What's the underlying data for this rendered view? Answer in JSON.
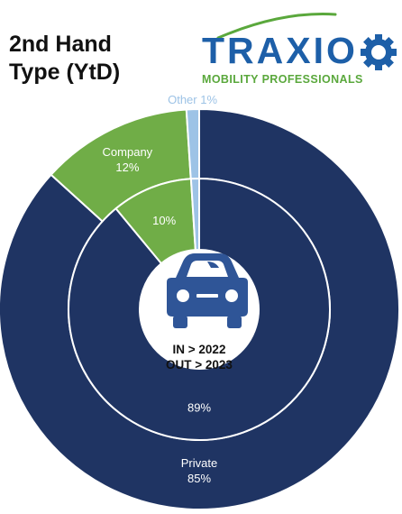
{
  "title_lines": [
    "2nd Hand",
    "Type (YtD)"
  ],
  "logo": {
    "wordmark": "TRAXIO",
    "tagline": "MOBILITY PROFESSIONALS"
  },
  "center_label": {
    "line1": "IN > 2022",
    "line2": "OUT > 2023"
  },
  "colors": {
    "private": "#1f3463",
    "company": "#70ad47",
    "other": "#9dc3e6",
    "white": "#ffffff",
    "brand_blue": "#1d5fa8",
    "brand_green": "#5aa83c"
  },
  "chart_data": {
    "type": "donut",
    "rings": [
      {
        "name": "OUT > 2023",
        "position": "outer",
        "slices": [
          {
            "name": "Private",
            "value": 85,
            "label": "Private\n85%"
          },
          {
            "name": "Company",
            "value": 12,
            "label": "Company\n12%"
          },
          {
            "name": "Other",
            "value": 1,
            "label": "Other 1%"
          }
        ]
      },
      {
        "name": "IN > 2022",
        "position": "inner",
        "slices": [
          {
            "name": "Private",
            "value": 89,
            "label": "89%"
          },
          {
            "name": "Company",
            "value": 10,
            "label": "10%"
          },
          {
            "name": "Other",
            "value": 1,
            "label": ""
          }
        ]
      }
    ]
  }
}
